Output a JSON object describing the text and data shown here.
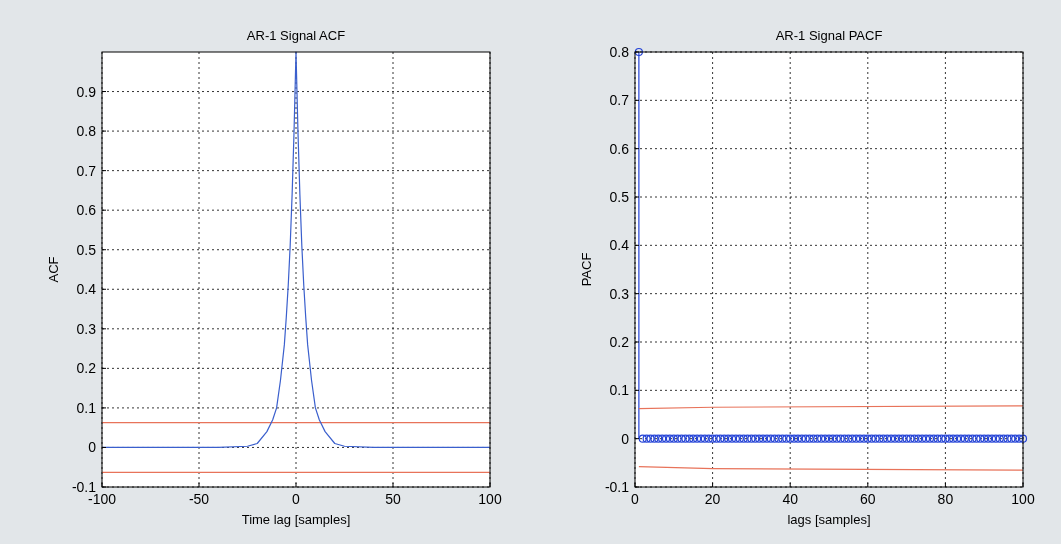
{
  "chart_data": [
    {
      "type": "line",
      "title": "AR-1 Signal ACF",
      "xlabel": "Time lag [samples]",
      "ylabel": "ACF",
      "xlim": [
        -100,
        100
      ],
      "xticks": [
        -100,
        -50,
        0,
        50,
        100
      ],
      "ylim": [
        -0.1,
        1.0
      ],
      "yticks": [
        -0.1,
        0,
        0.1,
        0.2,
        0.3,
        0.4,
        0.5,
        0.6,
        0.7,
        0.8,
        0.9
      ],
      "grid": true,
      "ref_lines": [
        {
          "axis": "y",
          "value": 0.063,
          "color": "#e8735a"
        },
        {
          "axis": "y",
          "value": -0.063,
          "color": "#e8735a"
        }
      ],
      "series": [
        {
          "color": "#3a5fcd",
          "x": [
            -100,
            -40,
            -25,
            -20,
            -15,
            -12,
            -10,
            -8,
            -6,
            -5,
            -4,
            -3,
            -2,
            -1,
            0,
            1,
            2,
            3,
            4,
            5,
            6,
            8,
            10,
            12,
            15,
            20,
            25,
            40,
            100
          ],
          "values": [
            0,
            0,
            0.003,
            0.01,
            0.04,
            0.07,
            0.1,
            0.17,
            0.26,
            0.33,
            0.41,
            0.51,
            0.64,
            0.8,
            1.0,
            0.8,
            0.64,
            0.51,
            0.41,
            0.33,
            0.26,
            0.17,
            0.1,
            0.07,
            0.04,
            0.01,
            0.003,
            0,
            0
          ]
        }
      ]
    },
    {
      "type": "lollipop",
      "title": "AR-1 Signal PACF",
      "xlabel": "lags [samples]",
      "ylabel": "PACF",
      "xlim": [
        0,
        100
      ],
      "xticks": [
        0,
        20,
        40,
        60,
        80,
        100
      ],
      "ylim": [
        -0.1,
        0.8
      ],
      "yticks": [
        -0.1,
        0,
        0.1,
        0.2,
        0.3,
        0.4,
        0.5,
        0.6,
        0.7,
        0.8
      ],
      "grid": true,
      "series": [
        {
          "marker": "circle",
          "color": "#2443d6",
          "x": [
            1,
            2,
            3,
            4,
            5,
            6,
            7,
            8,
            9,
            10,
            11,
            12,
            13,
            14,
            15,
            16,
            17,
            18,
            19,
            20,
            21,
            22,
            23,
            24,
            25,
            26,
            27,
            28,
            29,
            30,
            31,
            32,
            33,
            34,
            35,
            36,
            37,
            38,
            39,
            40,
            41,
            42,
            43,
            44,
            45,
            46,
            47,
            48,
            49,
            50,
            51,
            52,
            53,
            54,
            55,
            56,
            57,
            58,
            59,
            60,
            61,
            62,
            63,
            64,
            65,
            66,
            67,
            68,
            69,
            70,
            71,
            72,
            73,
            74,
            75,
            76,
            77,
            78,
            79,
            80,
            81,
            82,
            83,
            84,
            85,
            86,
            87,
            88,
            89,
            90,
            91,
            92,
            93,
            94,
            95,
            96,
            97,
            98,
            99,
            100
          ],
          "values": [
            0.8,
            0,
            0,
            0,
            0,
            0,
            0,
            0,
            0,
            0,
            0,
            0,
            0,
            0,
            0,
            0,
            0,
            0,
            0,
            0,
            0,
            0,
            0,
            0,
            0,
            0,
            0,
            0,
            0,
            0,
            0,
            0,
            0,
            0,
            0,
            0,
            0,
            0,
            0,
            0,
            0,
            0,
            0,
            0,
            0,
            0,
            0,
            0,
            0,
            0,
            0,
            0,
            0,
            0,
            0,
            0,
            0,
            0,
            0,
            0,
            0,
            0,
            0,
            0,
            0,
            0,
            0,
            0,
            0,
            0,
            0,
            0,
            0,
            0,
            0,
            0,
            0,
            0,
            0,
            0,
            0,
            0,
            0,
            0,
            0,
            0,
            0,
            0,
            0,
            0,
            0,
            0,
            0,
            0,
            0,
            0,
            0,
            0,
            0,
            0
          ]
        },
        {
          "type": "line",
          "color": "#e8735a",
          "x": [
            1,
            20,
            100
          ],
          "values": [
            0.062,
            0.065,
            0.068
          ]
        },
        {
          "type": "line",
          "color": "#e8735a",
          "x": [
            1,
            20,
            100
          ],
          "values": [
            -0.058,
            -0.062,
            -0.065
          ]
        }
      ]
    }
  ]
}
